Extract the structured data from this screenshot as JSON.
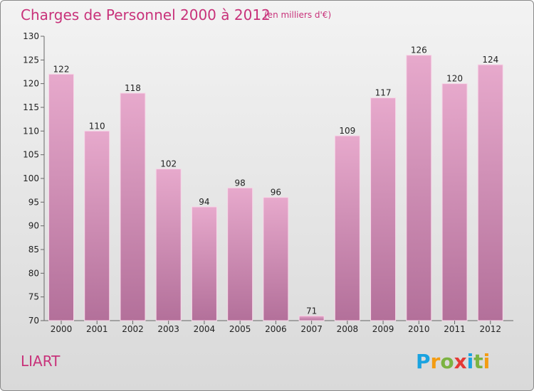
{
  "title": "Charges de Personnel 2000 à 2012",
  "subtitle": "(en milliers d'€)",
  "commune": "LIART",
  "brand": "Proxiti",
  "colors": {
    "title": "#c8327a",
    "bar_top": "#e7a9cc",
    "bar_bottom": "#b3709a",
    "background_top": "#f3f3f3",
    "background_bottom": "#d9d9d9"
  },
  "chart_data": {
    "type": "bar",
    "title": "Charges de Personnel 2000 à 2012",
    "subtitle": "(en milliers d'€)",
    "categories": [
      "2000",
      "2001",
      "2002",
      "2003",
      "2004",
      "2005",
      "2006",
      "2007",
      "2008",
      "2009",
      "2010",
      "2011",
      "2012"
    ],
    "values": [
      122,
      110,
      118,
      102,
      94,
      98,
      96,
      71,
      109,
      117,
      126,
      120,
      124
    ],
    "ylim": [
      70,
      130
    ],
    "yticks": [
      70,
      75,
      80,
      85,
      90,
      95,
      100,
      105,
      110,
      115,
      120,
      125,
      130
    ],
    "xlabel": "",
    "ylabel": "",
    "grid": false,
    "legend": "none"
  }
}
